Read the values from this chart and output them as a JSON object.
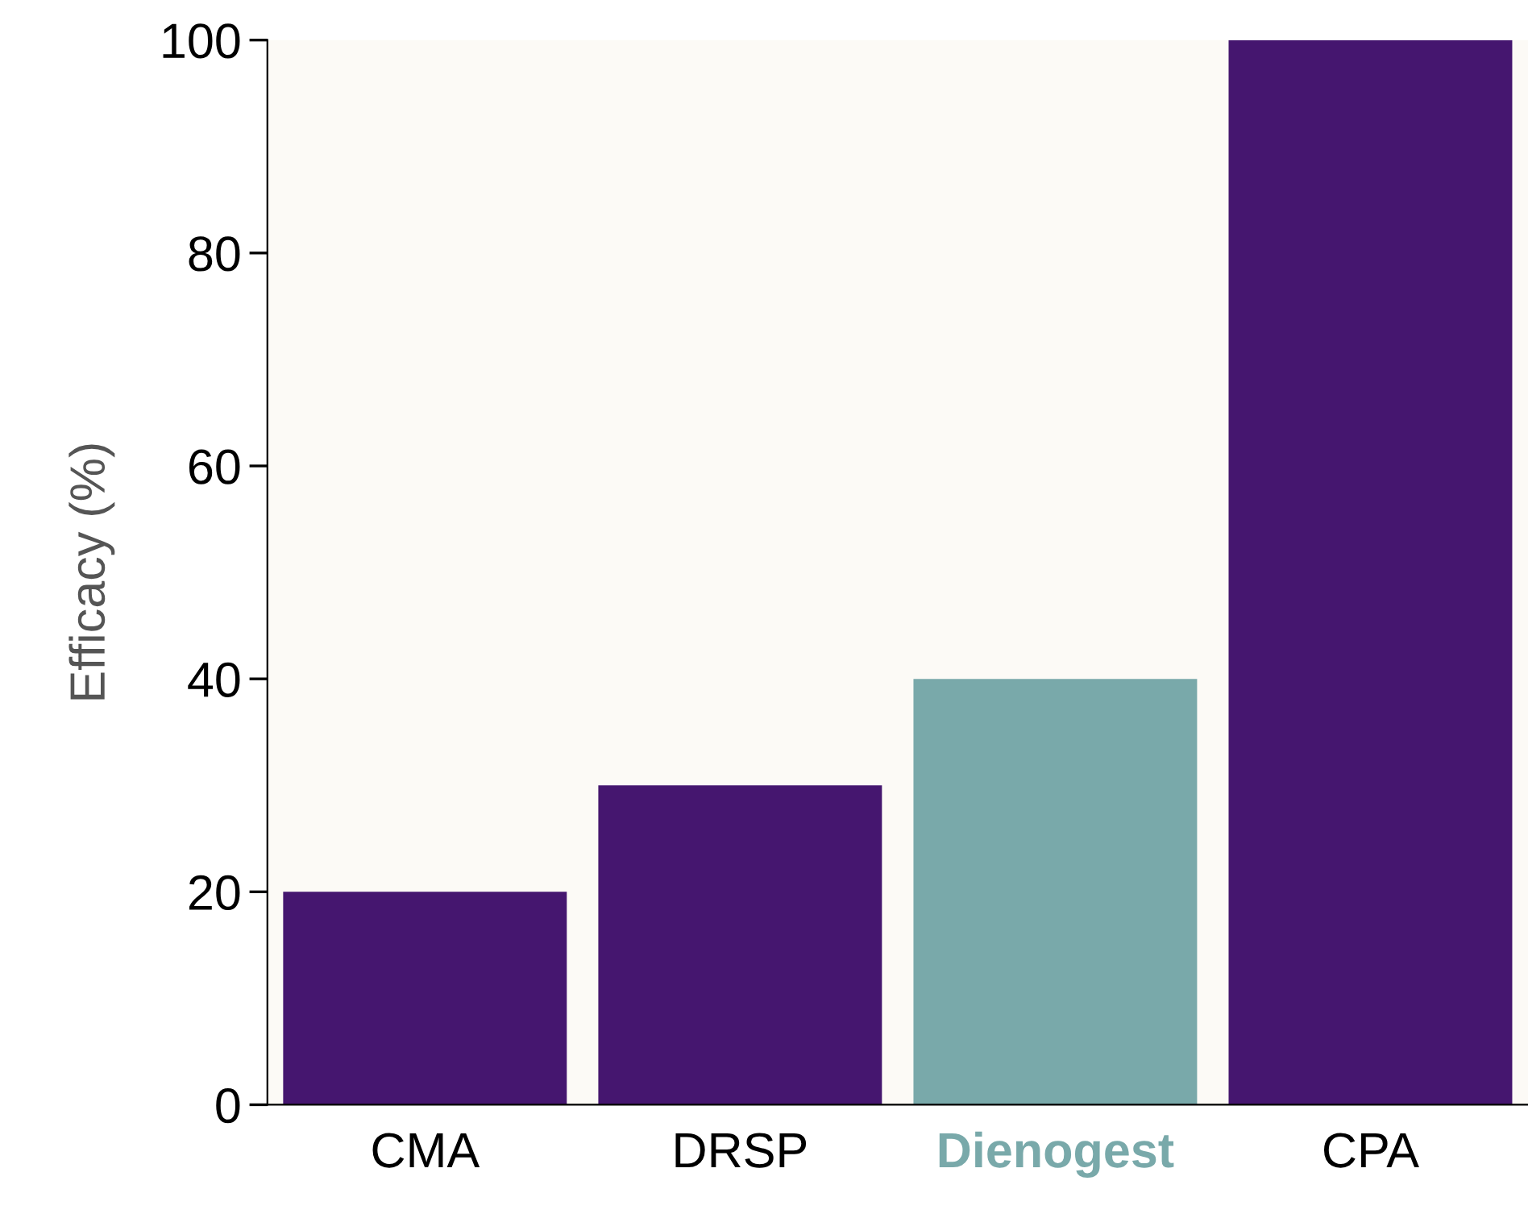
{
  "chart_data": {
    "type": "bar",
    "ylabel": "Efficacy (%)",
    "categories": [
      "CMA",
      "DRSP",
      "Dienogest",
      "CPA"
    ],
    "values": [
      20,
      30,
      40,
      100
    ],
    "colors": [
      "#45166f",
      "#45166f",
      "#79a9aa",
      "#45166f"
    ],
    "ylim": [
      0,
      100
    ],
    "yticks": [
      0,
      20,
      40,
      60,
      80,
      100
    ],
    "grid": false,
    "legend": false
  }
}
